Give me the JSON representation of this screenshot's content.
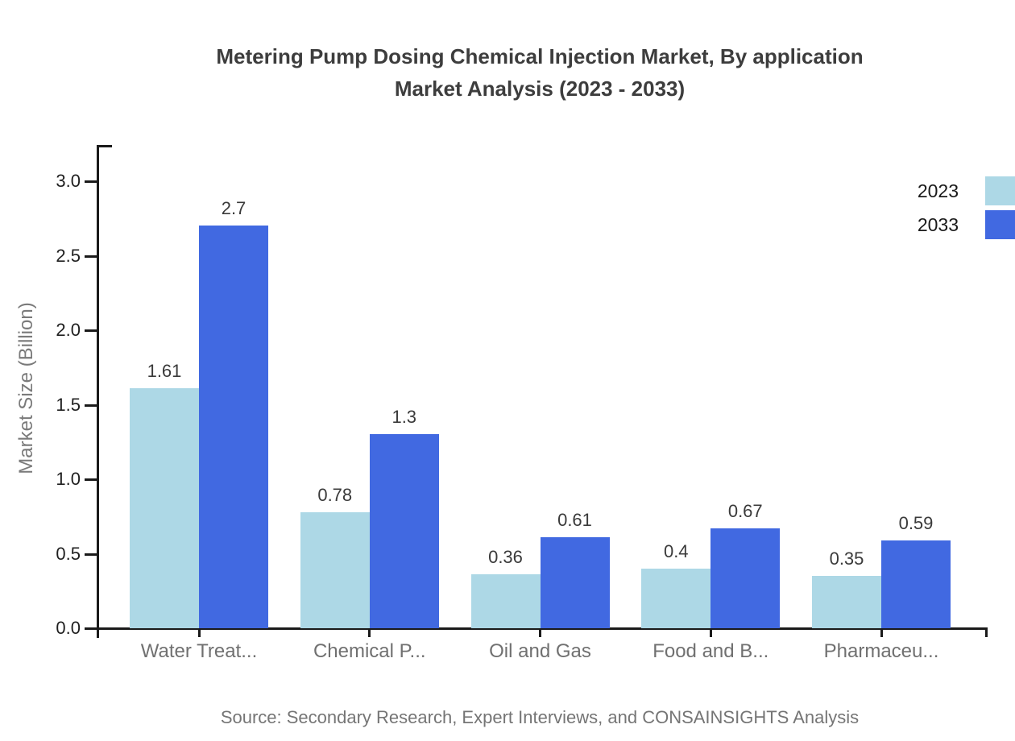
{
  "title_line1": "Metering Pump Dosing Chemical Injection Market, By application",
  "title_line2": "Market Analysis (2023 - 2033)",
  "source": "Source: Secondary Research, Expert Interviews, and CONSAINSIGHTS Analysis",
  "colors": {
    "series_2023": "#ADD8E6",
    "series_2033": "#4169E1",
    "axis": "#1a1a1a"
  },
  "chart_data": {
    "type": "bar",
    "title": "Metering Pump Dosing Chemical Injection Market, By application Market Analysis (2023 - 2033)",
    "categories": [
      "Water Treat...",
      "Chemical P...",
      "Oil and Gas",
      "Food and B...",
      "Pharmaceu..."
    ],
    "series": [
      {
        "name": "2023",
        "color": "#ADD8E6",
        "values": [
          1.61,
          0.78,
          0.36,
          0.4,
          0.35
        ]
      },
      {
        "name": "2033",
        "color": "#4169E1",
        "values": [
          2.7,
          1.3,
          0.61,
          0.67,
          0.59
        ]
      }
    ],
    "value_labels": [
      [
        "1.61",
        "0.78",
        "0.36",
        "0.4",
        "0.35"
      ],
      [
        "2.7",
        "1.3",
        "0.61",
        "0.67",
        "0.59"
      ]
    ],
    "xlabel": "",
    "ylabel": "Market Size (Billion)",
    "ylim": [
      0,
      3.25
    ],
    "yticks": [
      0.0,
      0.5,
      1.0,
      1.5,
      2.0,
      2.5,
      3.0
    ],
    "ytick_labels": [
      "0.0",
      "0.5",
      "1.0",
      "1.5",
      "2.0",
      "2.5",
      "3.0"
    ],
    "grid": false,
    "legend_position": "top-right"
  }
}
